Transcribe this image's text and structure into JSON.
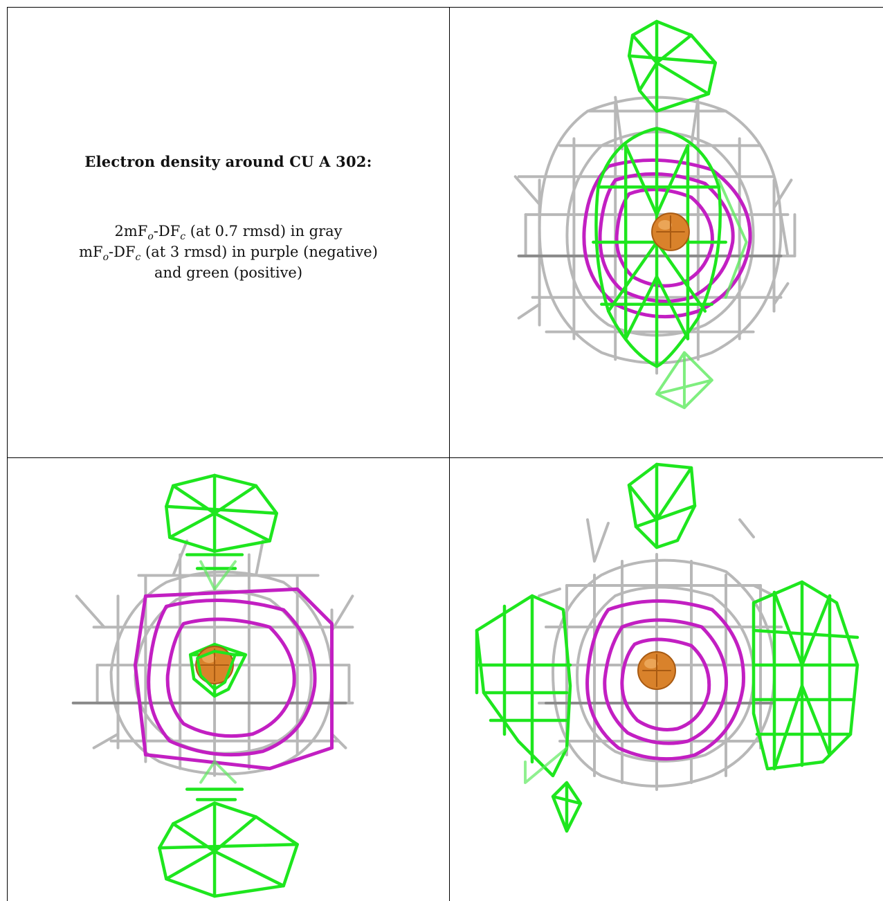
{
  "caption": {
    "title": "Electron density around CU A 302:",
    "line1_prefix": "2mF",
    "line1_mid": "-DF",
    "line1_suffix": " (at 0.7 rmsd) in gray",
    "line2_prefix": "mF",
    "line2_mid": "-DF",
    "line2_suffix": " (at 3 rmsd) in purple (negative)",
    "line3": "and green (positive)",
    "sub_o": "o",
    "sub_c": "c"
  },
  "colors": {
    "gray_mesh": "#b8b8b8",
    "gray_dark": "#8c8c8c",
    "purple_mesh": "#c21fc2",
    "green_mesh": "#1ee61e",
    "copper_atom": "#d9822b",
    "border": "#000000"
  },
  "panels": [
    {
      "name": "view-1",
      "icon": "density-mesh-icon"
    },
    {
      "name": "view-2",
      "icon": "density-mesh-icon"
    },
    {
      "name": "view-3",
      "icon": "density-mesh-icon"
    }
  ]
}
